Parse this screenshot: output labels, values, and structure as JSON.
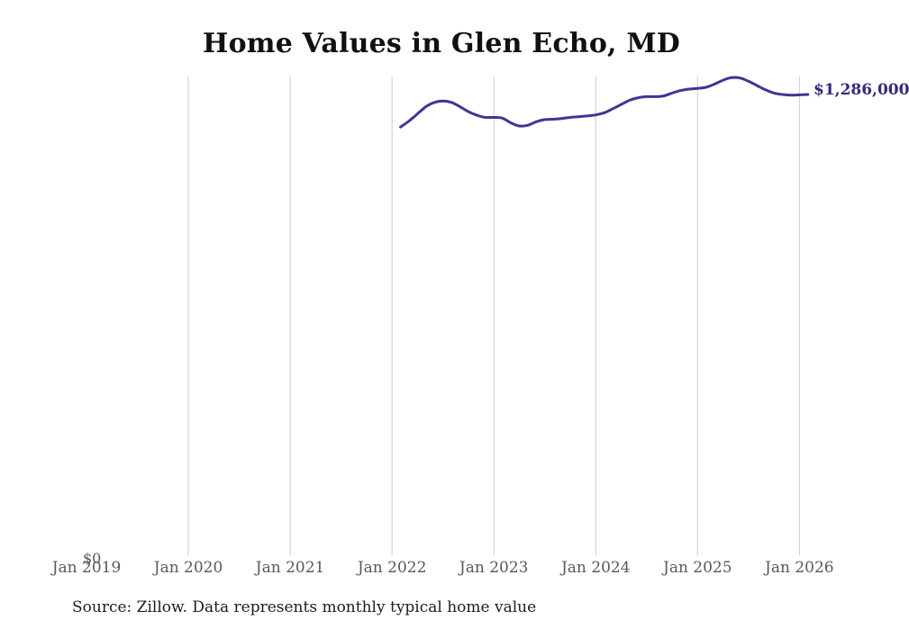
{
  "page": {
    "title": "Home Values in Glen Echo, MD",
    "source_note": "Source: Zillow. Data represents monthly typical home value"
  },
  "chart_data": {
    "type": "line",
    "title": "Home Values in Glen Echo, MD",
    "xlabel": "",
    "ylabel": "",
    "grid": "vertical-only",
    "legend": "none",
    "y_axis": {
      "zero_label": "$0",
      "min": 0
    },
    "end_label": "$1,286,000",
    "colors": {
      "line": "#3e3693",
      "end_label_text": "#312b7a",
      "gridline": "#cccccc",
      "axis_text": "#595959",
      "title_text": "#111111",
      "source_text": "#1c1c1c"
    },
    "x_ticks": [
      {
        "label": "Jan 2019",
        "gridline": false
      },
      {
        "label": "Jan 2020",
        "gridline": true
      },
      {
        "label": "Jan 2021",
        "gridline": true
      },
      {
        "label": "Jan 2022",
        "gridline": true
      },
      {
        "label": "Jan 2023",
        "gridline": true
      },
      {
        "label": "Jan 2024",
        "gridline": true
      },
      {
        "label": "Jan 2025",
        "gridline": true
      },
      {
        "label": "Jan 2026",
        "gridline": true
      }
    ],
    "series": [
      {
        "name": "Monthly typical home value",
        "x": [
          "2022-01",
          "2022-02",
          "2022-03",
          "2022-04",
          "2022-05",
          "2022-06",
          "2022-07",
          "2022-08",
          "2022-09",
          "2022-10",
          "2022-11",
          "2022-12",
          "2023-01",
          "2023-02",
          "2023-03",
          "2023-04",
          "2023-05",
          "2023-06",
          "2023-07",
          "2023-08",
          "2023-09",
          "2023-10",
          "2023-11",
          "2023-12",
          "2024-01",
          "2024-02",
          "2024-03",
          "2024-04",
          "2024-05",
          "2024-06",
          "2024-07",
          "2024-08",
          "2024-09",
          "2024-10",
          "2024-11",
          "2024-12",
          "2025-01",
          "2025-02",
          "2025-03",
          "2025-04",
          "2025-05",
          "2025-06",
          "2025-07",
          "2025-08",
          "2025-09",
          "2025-10",
          "2025-11",
          "2025-12",
          "2026-01"
        ],
        "values": [
          1195000,
          1212000,
          1232000,
          1252000,
          1264000,
          1268000,
          1264000,
          1252000,
          1238000,
          1228000,
          1222000,
          1222000,
          1220000,
          1207000,
          1198000,
          1200000,
          1210000,
          1216000,
          1217000,
          1219000,
          1222000,
          1224000,
          1226000,
          1229000,
          1235000,
          1246000,
          1258000,
          1270000,
          1277000,
          1280000,
          1280000,
          1282000,
          1290000,
          1297000,
          1301000,
          1303000,
          1306000,
          1315000,
          1326000,
          1333000,
          1332000,
          1323000,
          1311000,
          1299000,
          1290000,
          1286000,
          1284000,
          1285000,
          1286000
        ]
      }
    ]
  }
}
